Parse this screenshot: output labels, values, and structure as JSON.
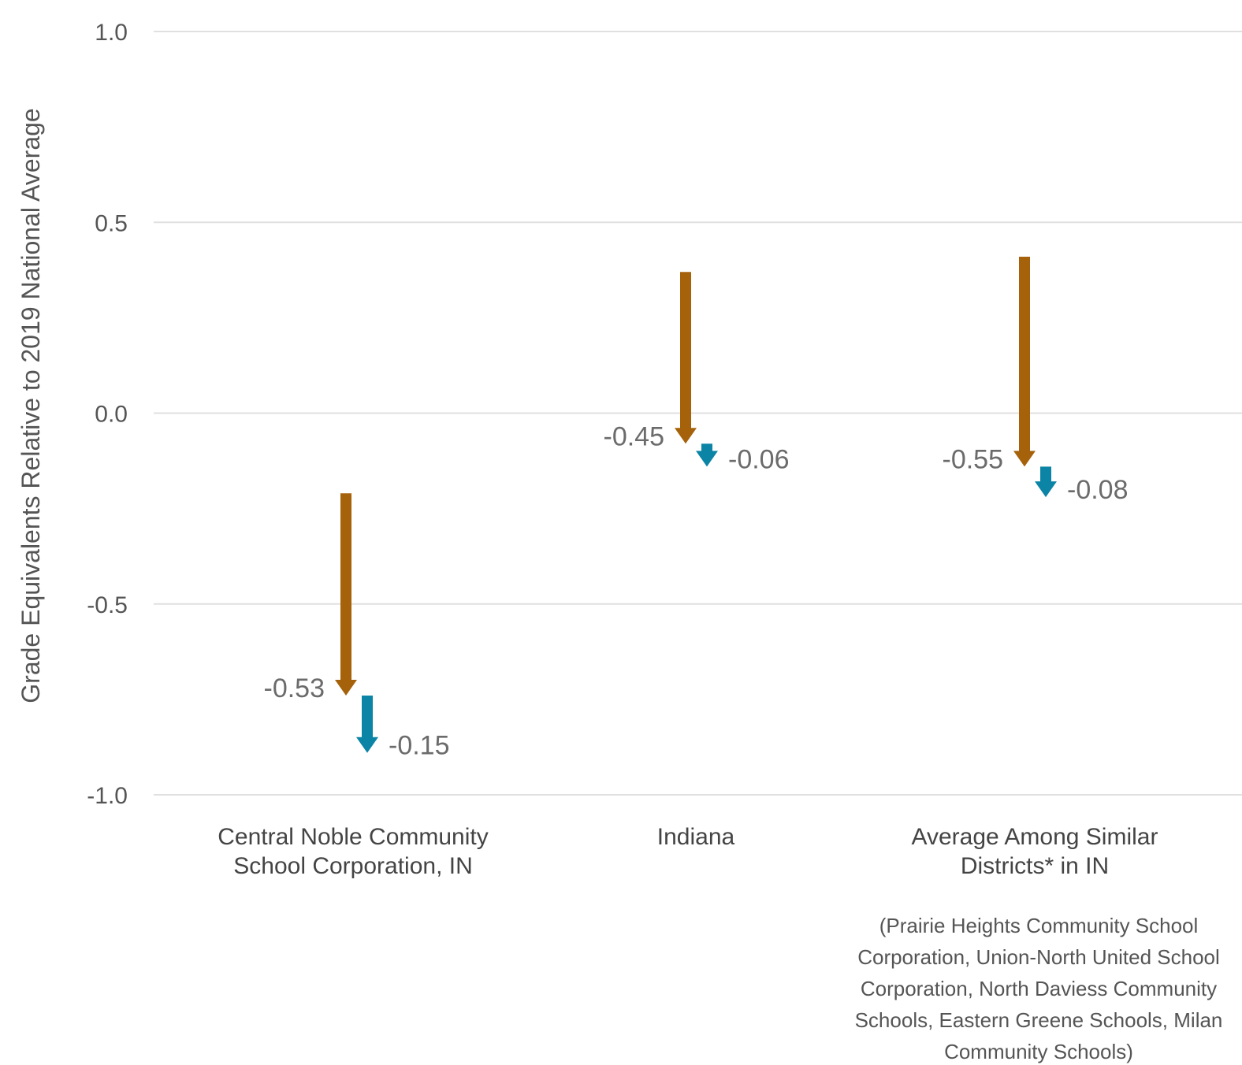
{
  "chart_data": {
    "type": "arrow",
    "ylabel": "Grade Equivalents Relative to 2019 National Average",
    "ylim": [
      -1.0,
      1.0
    ],
    "yticks": [
      "1.0",
      "0.5",
      "0.0",
      "-0.5",
      "-1.0"
    ],
    "ytick_values": [
      1.0,
      0.5,
      0.0,
      -0.5,
      -1.0
    ],
    "grid": true,
    "colors": {
      "first_change": "#a5620a",
      "second_change": "#0b84a5"
    },
    "categories": [
      {
        "name_lines": [
          "Central Noble Community",
          "School Corporation, IN"
        ],
        "note_lines": [],
        "first_change": {
          "start": -0.21,
          "end": -0.74,
          "label": "-0.53"
        },
        "second_change": {
          "start": -0.74,
          "end": -0.89,
          "label": "-0.15"
        }
      },
      {
        "name_lines": [
          "Indiana"
        ],
        "note_lines": [],
        "first_change": {
          "start": 0.37,
          "end": -0.08,
          "label": "-0.45"
        },
        "second_change": {
          "start": -0.08,
          "end": -0.14,
          "label": "-0.06"
        }
      },
      {
        "name_lines": [
          "Average Among Similar",
          "Districts* in IN"
        ],
        "note_lines": [
          "(Prairie Heights Community School",
          "Corporation, Union-North United School",
          "Corporation, North Daviess Community",
          "Schools, Eastern Greene Schools, Milan",
          "Community Schools)"
        ],
        "first_change": {
          "start": 0.41,
          "end": -0.14,
          "label": "-0.55"
        },
        "second_change": {
          "start": -0.14,
          "end": -0.22,
          "label": "-0.08"
        }
      }
    ]
  }
}
